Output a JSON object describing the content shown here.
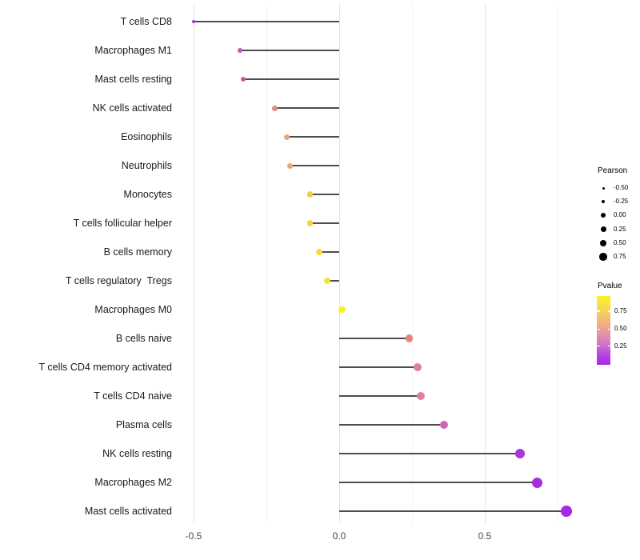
{
  "chart_data": {
    "type": "lollipop",
    "orientation": "horizontal",
    "x_axis": {
      "tick_labels": [
        "-0.5",
        "0.0",
        "0.5"
      ],
      "tick_values": [
        -0.5,
        0.0,
        0.5
      ],
      "minor_gridlines": [
        -0.25,
        0.25,
        0.75
      ],
      "range": [
        -0.56,
        0.845
      ]
    },
    "rows": [
      {
        "label": "T cells CD8",
        "pearson": -0.5,
        "dot_color": "#A934D8",
        "dot_size": 4
      },
      {
        "label": "Macrophages M1",
        "pearson": -0.34,
        "dot_color": "#C455B4",
        "dot_size": 6.5
      },
      {
        "label": "Mast cells resting",
        "pearson": -0.33,
        "dot_color": "#C558AD",
        "dot_size": 6.5
      },
      {
        "label": "NK cells activated",
        "pearson": -0.22,
        "dot_color": "#DD8B80",
        "dot_size": 7
      },
      {
        "label": "Eosinophils",
        "pearson": -0.18,
        "dot_color": "#E7A678",
        "dot_size": 7
      },
      {
        "label": "Neutrophils",
        "pearson": -0.17,
        "dot_color": "#E8A97A",
        "dot_size": 7
      },
      {
        "label": "Monocytes",
        "pearson": -0.1,
        "dot_color": "#F0CE52",
        "dot_size": 7.5
      },
      {
        "label": "T cells follicular helper",
        "pearson": -0.1,
        "dot_color": "#F2D348",
        "dot_size": 7.5
      },
      {
        "label": "B cells memory",
        "pearson": -0.07,
        "dot_color": "#F5DC3E",
        "dot_size": 8
      },
      {
        "label": "T cells regulatory  Tregs",
        "pearson": -0.04,
        "dot_color": "#F7E334",
        "dot_size": 8
      },
      {
        "label": "Macrophages M0",
        "pearson": 0.01,
        "dot_color": "#FAF02B",
        "dot_size": 8.5
      },
      {
        "label": "B cells naive",
        "pearson": 0.24,
        "dot_color": "#E3857F",
        "dot_size": 9.5
      },
      {
        "label": "T cells CD4 memory activated",
        "pearson": 0.27,
        "dot_color": "#E27D9B",
        "dot_size": 10
      },
      {
        "label": "T cells CD4 naive",
        "pearson": 0.28,
        "dot_color": "#E07EA2",
        "dot_size": 10
      },
      {
        "label": "Plasma cells",
        "pearson": 0.36,
        "dot_color": "#CE63BE",
        "dot_size": 10.5
      },
      {
        "label": "NK cells resting",
        "pearson": 0.62,
        "dot_color": "#AB36DF",
        "dot_size": 12
      },
      {
        "label": "Macrophages M2",
        "pearson": 0.68,
        "dot_color": "#A82DE2",
        "dot_size": 13
      },
      {
        "label": "Mast cells activated",
        "pearson": 0.78,
        "dot_color": "#A929E6",
        "dot_size": 13.5
      }
    ],
    "legend_size": {
      "title": "Pearson",
      "items": [
        {
          "label": "-0.50",
          "size": 3
        },
        {
          "label": "-0.25",
          "size": 4.5
        },
        {
          "label": "0.00",
          "size": 6
        },
        {
          "label": "0.25",
          "size": 7
        },
        {
          "label": "0.50",
          "size": 8
        },
        {
          "label": "0.75",
          "size": 9.5
        }
      ]
    },
    "legend_color": {
      "title": "Pvalue",
      "gradient_stops": [
        {
          "color": "#FAF222",
          "pos": 0
        },
        {
          "color": "#F6D75A",
          "pos": 20
        },
        {
          "color": "#F0B080",
          "pos": 40
        },
        {
          "color": "#E494A8",
          "pos": 55
        },
        {
          "color": "#D273CA",
          "pos": 70
        },
        {
          "color": "#B946DF",
          "pos": 85
        },
        {
          "color": "#A527EA",
          "pos": 100
        }
      ],
      "ticks": [
        {
          "label": "0.75",
          "pos": 0.22
        },
        {
          "label": "0.50",
          "pos": 0.48
        },
        {
          "label": "0.25",
          "pos": 0.73
        }
      ]
    },
    "style": {
      "stem_color": "#4d4d4d",
      "major_grid_color": "#e4e4e4",
      "minor_grid_color": "#f2f2f2",
      "background": "#ffffff"
    }
  }
}
